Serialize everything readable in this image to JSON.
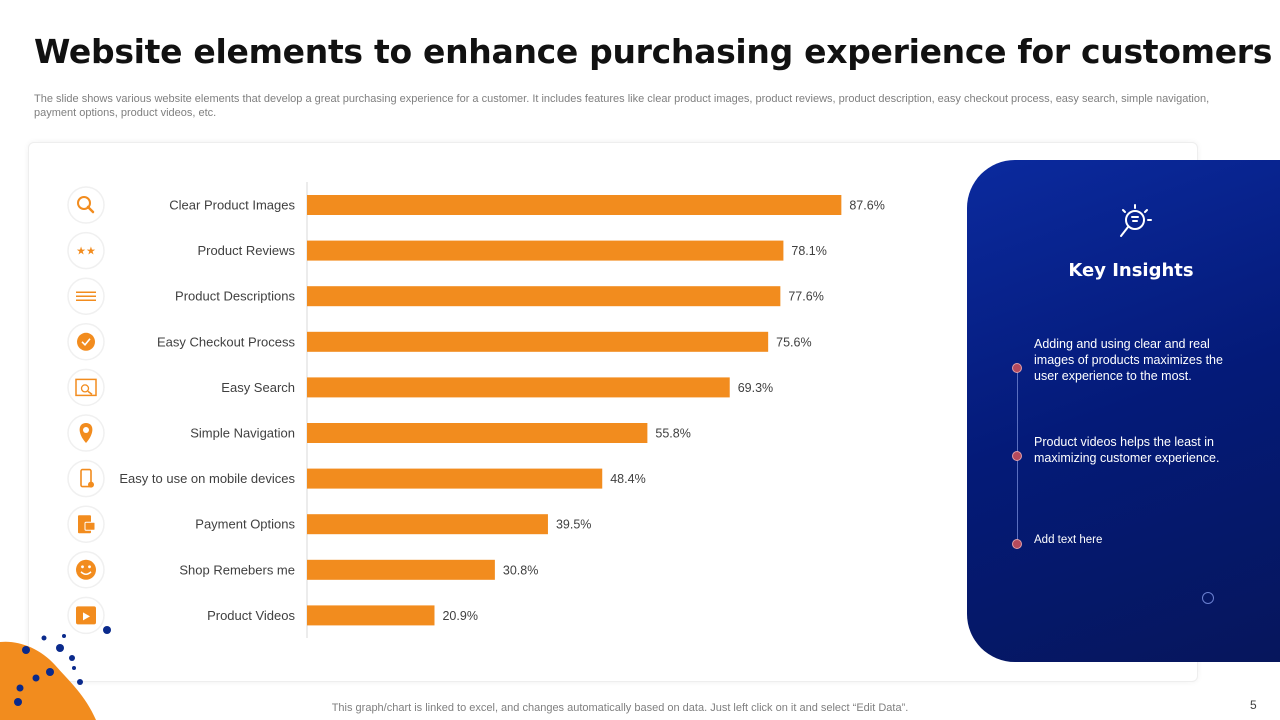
{
  "slide": {
    "title": "Website elements to enhance purchasing experience for customers",
    "subtitle": "The slide shows various website elements that develop a great purchasing experience for a  customer. It includes features like clear product images, product reviews, product description, easy checkout process, easy search, simple navigation, payment options, product videos, etc.",
    "footer": "This graph/chart is linked to excel,  and changes automatically based on data. Just left click on it and select “Edit Data”.",
    "page_number": "5"
  },
  "chart_data": {
    "type": "bar",
    "orientation": "horizontal",
    "title": "",
    "xlabel": "",
    "ylabel": "",
    "xlim": [
      0,
      100
    ],
    "grid": false,
    "bar_color": "#F28C1E",
    "categories": [
      "Clear Product Images",
      "Product Reviews",
      "Product Descriptions",
      "Easy Checkout Process",
      "Easy Search",
      "Simple Navigation",
      "Easy to use on mobile devices",
      "Payment Options",
      "Shop Remebers me",
      "Product Videos"
    ],
    "values": [
      87.6,
      78.1,
      77.6,
      75.6,
      69.3,
      55.8,
      48.4,
      39.5,
      30.8,
      20.9
    ],
    "value_labels": [
      "87.6%",
      "78.1%",
      "77.6%",
      "75.6%",
      "69.3%",
      "55.8%",
      "48.4%",
      "39.5%",
      "30.8%",
      "20.9%"
    ],
    "icons": [
      "search-icon",
      "stars-icon",
      "lines-icon",
      "checkmark-icon",
      "search-screen-icon",
      "location-pin-icon",
      "mobile-device-icon",
      "payment-icon",
      "smiley-icon",
      "video-icon"
    ]
  },
  "insights": {
    "heading": "Key Insights",
    "icon": "lightbulb-magnifier-icon",
    "items": [
      "Adding and using clear and real images of products maximizes the user experience to the most.",
      "Product videos helps the least in maximizing customer experience.",
      "Add text here"
    ]
  },
  "colors": {
    "accent": "#F28C1E",
    "panel_blue": "#041A78",
    "dot_blue": "#0A2A8C"
  }
}
